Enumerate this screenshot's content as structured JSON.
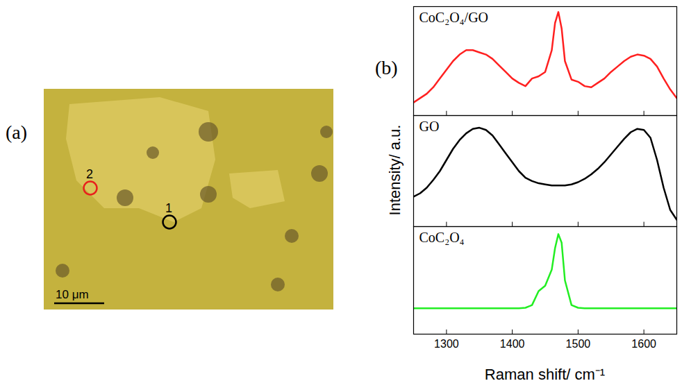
{
  "panel_a": {
    "label": "(a)",
    "markers": [
      {
        "text": "1",
        "color": "#000000"
      },
      {
        "text": "2",
        "color": "#e8201c"
      }
    ],
    "scale_bar": "10 μm"
  },
  "panel_b_label": "(b)",
  "chart_data": [
    {
      "type": "line",
      "title": "CoC₂O₄/GO",
      "color": "#ff2020",
      "x": [
        1250,
        1260,
        1270,
        1280,
        1290,
        1300,
        1310,
        1320,
        1330,
        1340,
        1350,
        1360,
        1370,
        1380,
        1390,
        1400,
        1410,
        1420,
        1430,
        1440,
        1450,
        1460,
        1465,
        1470,
        1475,
        1480,
        1490,
        1500,
        1510,
        1520,
        1530,
        1540,
        1550,
        1560,
        1570,
        1580,
        1590,
        1600,
        1610,
        1620,
        1630,
        1640,
        1650
      ],
      "values": [
        0.12,
        0.16,
        0.2,
        0.26,
        0.34,
        0.42,
        0.5,
        0.56,
        0.6,
        0.6,
        0.58,
        0.56,
        0.52,
        0.46,
        0.4,
        0.34,
        0.3,
        0.27,
        0.34,
        0.36,
        0.4,
        0.6,
        0.85,
        0.95,
        0.8,
        0.5,
        0.33,
        0.31,
        0.27,
        0.26,
        0.3,
        0.34,
        0.4,
        0.45,
        0.5,
        0.54,
        0.56,
        0.55,
        0.52,
        0.45,
        0.34,
        0.24,
        0.16
      ],
      "xlim": [
        1250,
        1650
      ],
      "xticks": [
        1300,
        1400,
        1500,
        1600
      ],
      "ylim": [
        0,
        1
      ],
      "yticks": [],
      "tick_labels": false
    },
    {
      "type": "line",
      "title": "GO",
      "color": "#000000",
      "ylabel": "Intensity/ a.u.",
      "x": [
        1250,
        1260,
        1270,
        1280,
        1290,
        1300,
        1310,
        1320,
        1330,
        1340,
        1350,
        1360,
        1370,
        1380,
        1390,
        1400,
        1410,
        1420,
        1430,
        1440,
        1450,
        1460,
        1465,
        1470,
        1475,
        1480,
        1490,
        1500,
        1510,
        1520,
        1530,
        1540,
        1550,
        1560,
        1570,
        1580,
        1590,
        1600,
        1610,
        1620,
        1630,
        1640,
        1650
      ],
      "values": [
        0.27,
        0.3,
        0.35,
        0.42,
        0.5,
        0.6,
        0.7,
        0.78,
        0.84,
        0.88,
        0.89,
        0.87,
        0.82,
        0.74,
        0.66,
        0.58,
        0.5,
        0.44,
        0.41,
        0.39,
        0.38,
        0.37,
        0.37,
        0.37,
        0.37,
        0.37,
        0.38,
        0.4,
        0.43,
        0.47,
        0.52,
        0.58,
        0.65,
        0.72,
        0.79,
        0.85,
        0.88,
        0.87,
        0.8,
        0.6,
        0.35,
        0.15,
        0.06
      ],
      "xlim": [
        1250,
        1650
      ],
      "xticks": [
        1300,
        1400,
        1500,
        1600
      ],
      "ylim": [
        0,
        1
      ],
      "yticks": [],
      "tick_labels": false
    },
    {
      "type": "line",
      "title": "CoC₂O₄",
      "color": "#22ee22",
      "xlabel": "Raman shift/ cm⁻¹",
      "x": [
        1250,
        1260,
        1270,
        1280,
        1290,
        1300,
        1310,
        1320,
        1330,
        1340,
        1350,
        1360,
        1370,
        1380,
        1390,
        1400,
        1410,
        1420,
        1430,
        1440,
        1450,
        1460,
        1465,
        1470,
        1475,
        1480,
        1490,
        1500,
        1510,
        1520,
        1530,
        1540,
        1550,
        1560,
        1570,
        1580,
        1590,
        1600,
        1610,
        1620,
        1630,
        1640,
        1650
      ],
      "values": [
        0.24,
        0.24,
        0.24,
        0.24,
        0.24,
        0.24,
        0.24,
        0.24,
        0.24,
        0.24,
        0.24,
        0.24,
        0.24,
        0.24,
        0.24,
        0.24,
        0.24,
        0.245,
        0.27,
        0.4,
        0.45,
        0.6,
        0.8,
        0.93,
        0.85,
        0.5,
        0.27,
        0.245,
        0.24,
        0.24,
        0.24,
        0.24,
        0.24,
        0.24,
        0.24,
        0.24,
        0.24,
        0.24,
        0.24,
        0.24,
        0.24,
        0.24,
        0.24
      ],
      "xlim": [
        1250,
        1650
      ],
      "xticks": [
        1300,
        1400,
        1500,
        1600
      ],
      "ylim": [
        0,
        1
      ],
      "yticks": [],
      "tick_labels": "x"
    }
  ]
}
